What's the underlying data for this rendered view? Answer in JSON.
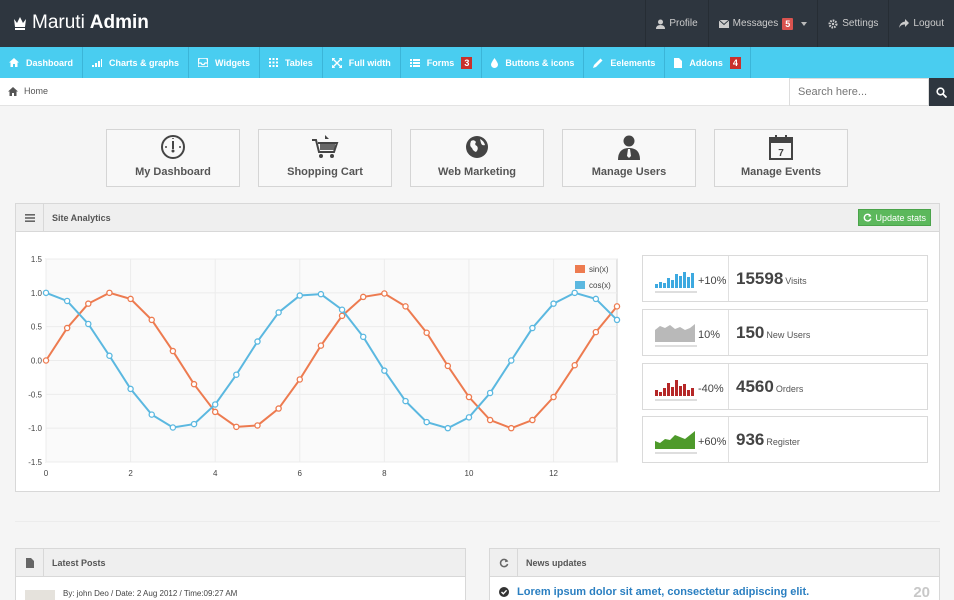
{
  "brand": {
    "light": "Maruti",
    "bold": "Admin"
  },
  "topnav": [
    {
      "label": "Profile",
      "icon": "user-icon"
    },
    {
      "label": "Messages",
      "icon": "envelope-icon",
      "badge": "5",
      "dropdown": true
    },
    {
      "label": "Settings",
      "icon": "gear-icon"
    },
    {
      "label": "Logout",
      "icon": "share-icon"
    }
  ],
  "menu": [
    {
      "label": "Dashboard",
      "icon": "home-icon"
    },
    {
      "label": "Charts & graphs",
      "icon": "signal-icon"
    },
    {
      "label": "Widgets",
      "icon": "inbox-icon"
    },
    {
      "label": "Tables",
      "icon": "grid-icon"
    },
    {
      "label": "Full width",
      "icon": "fullscreen-icon"
    },
    {
      "label": "Forms",
      "icon": "list-icon",
      "badge": "3"
    },
    {
      "label": "Buttons & icons",
      "icon": "tint-icon"
    },
    {
      "label": "Eelements",
      "icon": "pencil-icon"
    },
    {
      "label": "Addons",
      "icon": "file-icon",
      "badge": "4"
    }
  ],
  "breadcrumb": {
    "home": "Home"
  },
  "search": {
    "placeholder": "Search here..."
  },
  "tiles": [
    {
      "label": "My Dashboard",
      "icon": "speedometer-icon"
    },
    {
      "label": "Shopping Cart",
      "icon": "cart-icon"
    },
    {
      "label": "Web Marketing",
      "icon": "globe-icon"
    },
    {
      "label": "Manage Users",
      "icon": "user-tie-icon"
    },
    {
      "label": "Manage Events",
      "icon": "calendar-icon"
    }
  ],
  "analytics": {
    "title": "Site Analytics",
    "update_label": "Update stats",
    "update_color": "#5cb85c"
  },
  "chart_data": {
    "type": "line",
    "title": "",
    "xlabel": "",
    "ylabel": "",
    "xlim": [
      0,
      13.5
    ],
    "ylim": [
      -1.5,
      1.5
    ],
    "xticks": [
      0,
      2,
      4,
      6,
      8,
      10,
      12
    ],
    "yticks": [
      1.5,
      1.0,
      0.5,
      0.0,
      -0.5,
      -1.0,
      -1.5
    ],
    "grid": true,
    "legend": "top-right",
    "x": [
      0,
      0.5,
      1,
      1.5,
      2,
      2.5,
      3,
      3.5,
      4,
      4.5,
      5,
      5.5,
      6,
      6.5,
      7,
      7.5,
      8,
      8.5,
      9,
      9.5,
      10,
      10.5,
      11,
      11.5,
      12,
      12.5,
      13,
      13.5
    ],
    "series": [
      {
        "name": "sin(x)",
        "color": "#ed7b50",
        "values": [
          0,
          0.48,
          0.84,
          1.0,
          0.91,
          0.6,
          0.14,
          -0.35,
          -0.76,
          -0.98,
          -0.96,
          -0.71,
          -0.28,
          0.22,
          0.66,
          0.94,
          0.99,
          0.8,
          0.41,
          -0.08,
          -0.54,
          -0.88,
          -1.0,
          -0.88,
          -0.54,
          -0.07,
          0.42,
          0.8
        ]
      },
      {
        "name": "cos(x)",
        "color": "#5bb8e0",
        "values": [
          1.0,
          0.88,
          0.54,
          0.07,
          -0.42,
          -0.8,
          -0.99,
          -0.94,
          -0.65,
          -0.21,
          0.28,
          0.71,
          0.96,
          0.98,
          0.75,
          0.35,
          -0.15,
          -0.6,
          -0.91,
          -1.0,
          -0.84,
          -0.48,
          0.0,
          0.48,
          0.84,
          1.0,
          0.91,
          0.6
        ]
      }
    ]
  },
  "stats": [
    {
      "pct": "+10%",
      "value": "15598",
      "label": "Visits",
      "color": "#3da9e0",
      "spark": "bars"
    },
    {
      "pct": "10%",
      "value": "150",
      "label": "New Users",
      "color": "#b9b9b9",
      "spark": "area"
    },
    {
      "pct": "-40%",
      "value": "4560",
      "label": "Orders",
      "color": "#b52727",
      "spark": "bars"
    },
    {
      "pct": "+60%",
      "value": "936",
      "label": "Register",
      "color": "#4e9a2b",
      "spark": "area"
    }
  ],
  "latest_posts": {
    "title": "Latest Posts",
    "meta": "By: john Deo / Date: 2 Aug 2012 / Time:09:27 AM"
  },
  "news": {
    "title": "News updates",
    "headline": "Lorem ipsum dolor sit amet, consectetur adipiscing elit.",
    "date": "20"
  }
}
